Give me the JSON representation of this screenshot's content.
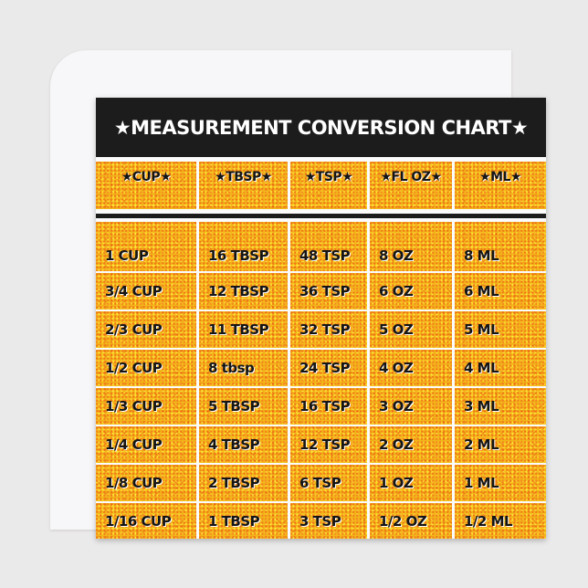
{
  "title": "★MEASUREMENT CONVERSION CHART★",
  "headers": [
    "★CUP★",
    "★TBSP★",
    "★TSP★",
    "★FL OZ★",
    "★ML★"
  ],
  "rows": [
    [
      "1 CUP",
      "16 TBSP",
      "48 TSP",
      "8 OZ",
      "8 ML"
    ],
    [
      "3/4 CUP",
      "12 TBSP",
      "36 TSP",
      "6 OZ",
      "6 ML"
    ],
    [
      "2/3 CUP",
      "11 TBSP",
      "32 TSP",
      "5 OZ",
      "5 ML"
    ],
    [
      "1/2 CUP",
      "8 tbsp",
      "24 TSP",
      "4 OZ",
      "4 ML"
    ],
    [
      "1/3 CUP",
      "5 TBSP",
      "16 TSP",
      "3 OZ",
      "3 ML"
    ],
    [
      "1/4 CUP",
      "4 TBSP",
      "12 TSP",
      "2 OZ",
      "2 ML"
    ],
    [
      "1/8 CUP",
      "2 TBSP",
      "6 TSP",
      "1 OZ",
      "1 ML"
    ],
    [
      "1/16 CUP",
      "1 TBSP",
      "3 TSP",
      "1/2 OZ",
      "1/2 ML"
    ]
  ],
  "colors": {
    "title_bar": "#1c1c1c",
    "cell_base": "#f2b51a",
    "speckle": "#f04614"
  }
}
